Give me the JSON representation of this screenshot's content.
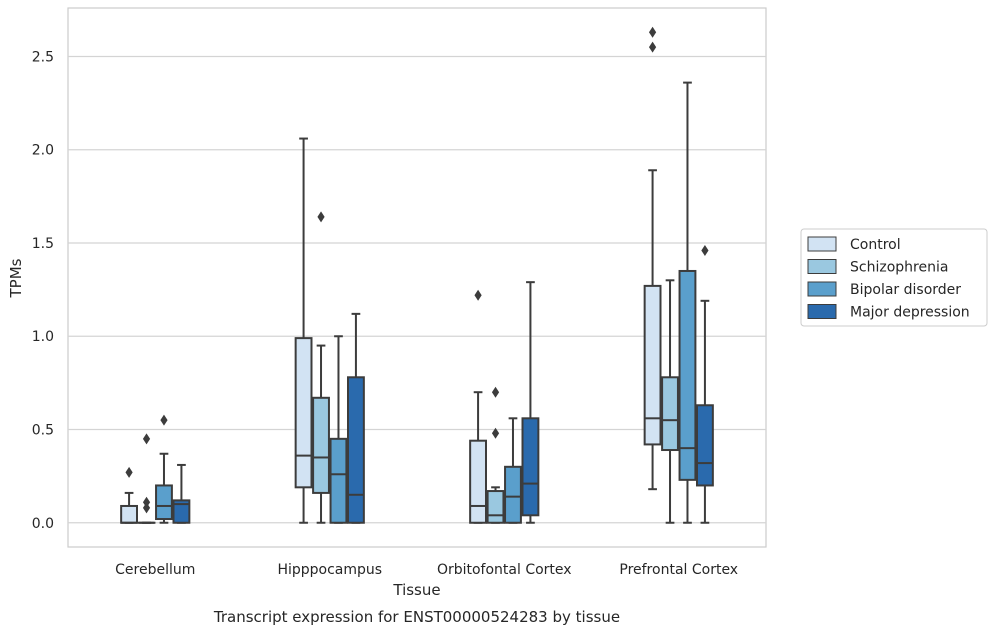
{
  "chart_data": {
    "type": "boxplot",
    "caption": "Transcript expression for ENST00000524283 by tissue",
    "xlabel": "Tissue",
    "ylabel": "TPMs",
    "ylim": [
      -0.13,
      2.76
    ],
    "yticks": [
      0.0,
      0.5,
      1.0,
      1.5,
      2.0,
      2.5
    ],
    "ytick_labels": [
      "0.0",
      "0.5",
      "1.0",
      "1.5",
      "2.0",
      "2.5"
    ],
    "grid": "horizontal",
    "legend_position": "right",
    "categories": [
      "Cerebellum",
      "Hipppocampus",
      "Orbitofontal Cortex",
      "Prefrontal Cortex"
    ],
    "series": [
      {
        "name": "Control",
        "color": "#d2e3f3",
        "boxes": [
          {
            "whisker_low": 0.0,
            "q1": 0.0,
            "median": 0.0,
            "q3": 0.09,
            "whisker_high": 0.16,
            "outliers": [
              0.27
            ]
          },
          {
            "whisker_low": 0.0,
            "q1": 0.19,
            "median": 0.36,
            "q3": 0.99,
            "whisker_high": 2.06,
            "outliers": []
          },
          {
            "whisker_low": 0.0,
            "q1": 0.0,
            "median": 0.09,
            "q3": 0.44,
            "whisker_high": 0.7,
            "outliers": [
              1.22
            ]
          },
          {
            "whisker_low": 0.18,
            "q1": 0.42,
            "median": 0.56,
            "q3": 1.27,
            "whisker_high": 1.89,
            "outliers": [
              2.55,
              2.63
            ]
          }
        ]
      },
      {
        "name": "Schizophrenia",
        "color": "#9ac8e0",
        "boxes": [
          {
            "whisker_low": 0.0,
            "q1": 0.0,
            "median": 0.0,
            "q3": 0.0,
            "whisker_high": 0.0,
            "outliers": [
              0.08,
              0.11,
              0.45
            ]
          },
          {
            "whisker_low": 0.0,
            "q1": 0.16,
            "median": 0.35,
            "q3": 0.67,
            "whisker_high": 0.95,
            "outliers": [
              1.64
            ]
          },
          {
            "whisker_low": 0.0,
            "q1": 0.0,
            "median": 0.04,
            "q3": 0.17,
            "whisker_high": 0.19,
            "outliers": [
              0.48,
              0.7
            ]
          },
          {
            "whisker_low": 0.0,
            "q1": 0.39,
            "median": 0.55,
            "q3": 0.78,
            "whisker_high": 1.3,
            "outliers": []
          }
        ]
      },
      {
        "name": "Bipolar disorder",
        "color": "#5a9fcc",
        "boxes": [
          {
            "whisker_low": 0.0,
            "q1": 0.02,
            "median": 0.09,
            "q3": 0.2,
            "whisker_high": 0.37,
            "outliers": [
              0.55
            ]
          },
          {
            "whisker_low": 0.0,
            "q1": 0.0,
            "median": 0.26,
            "q3": 0.45,
            "whisker_high": 1.0,
            "outliers": []
          },
          {
            "whisker_low": 0.0,
            "q1": 0.0,
            "median": 0.14,
            "q3": 0.3,
            "whisker_high": 0.56,
            "outliers": []
          },
          {
            "whisker_low": 0.0,
            "q1": 0.23,
            "median": 0.4,
            "q3": 1.35,
            "whisker_high": 2.36,
            "outliers": []
          }
        ]
      },
      {
        "name": "Major depression",
        "color": "#2a6aad",
        "boxes": [
          {
            "whisker_low": 0.0,
            "q1": 0.0,
            "median": 0.1,
            "q3": 0.12,
            "whisker_high": 0.31,
            "outliers": []
          },
          {
            "whisker_low": 0.0,
            "q1": 0.0,
            "median": 0.15,
            "q3": 0.78,
            "whisker_high": 1.12,
            "outliers": []
          },
          {
            "whisker_low": 0.0,
            "q1": 0.04,
            "median": 0.21,
            "q3": 0.56,
            "whisker_high": 1.29,
            "outliers": []
          },
          {
            "whisker_low": 0.0,
            "q1": 0.2,
            "median": 0.32,
            "q3": 0.63,
            "whisker_high": 1.19,
            "outliers": [
              1.46
            ]
          }
        ]
      }
    ]
  }
}
